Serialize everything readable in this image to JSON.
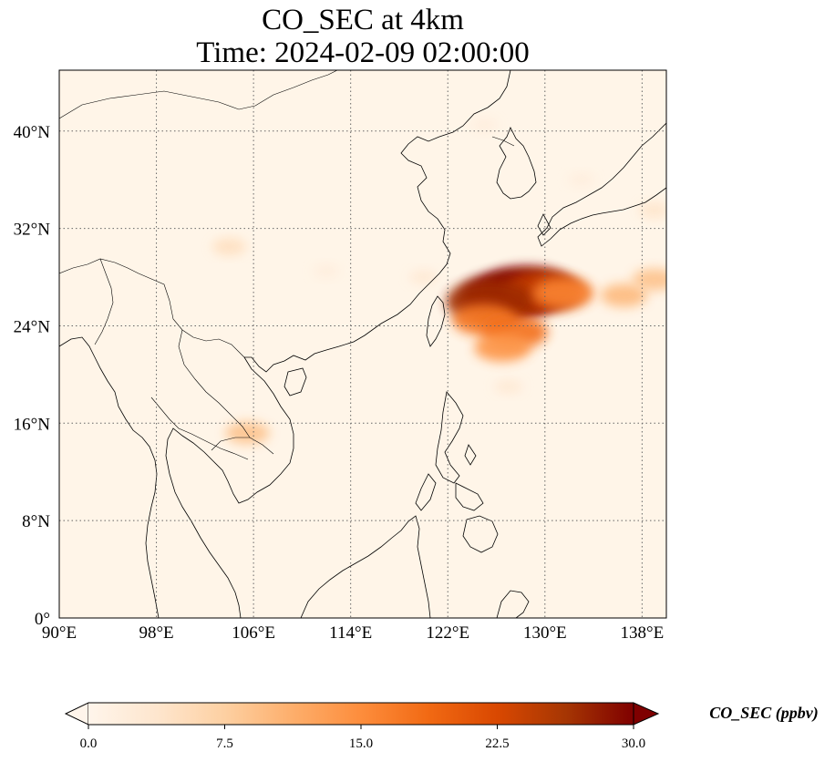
{
  "title": {
    "line1": "CO_SEC at 4km",
    "line2": "Time: 2024-02-09 02:00:00"
  },
  "map": {
    "lon_range": [
      90,
      140
    ],
    "lat_range": [
      0,
      45
    ],
    "lon_ticks": [
      {
        "value": 90,
        "label": "90°E"
      },
      {
        "value": 98,
        "label": "98°E"
      },
      {
        "value": 106,
        "label": "106°E"
      },
      {
        "value": 114,
        "label": "114°E"
      },
      {
        "value": 122,
        "label": "122°E"
      },
      {
        "value": 130,
        "label": "130°E"
      },
      {
        "value": 138,
        "label": "138°E"
      }
    ],
    "lat_ticks": [
      {
        "value": 0,
        "label": "0°"
      },
      {
        "value": 8,
        "label": "8°N"
      },
      {
        "value": 16,
        "label": "16°N"
      },
      {
        "value": 24,
        "label": "24°N"
      },
      {
        "value": 32,
        "label": "32°N"
      },
      {
        "value": 40,
        "label": "40°N"
      }
    ],
    "gridlines": "dotted",
    "background_color": "#fff5e8",
    "coast_color": "#000000",
    "plumes": [
      {
        "lon": 127,
        "lat": 26.5,
        "value": 30
      },
      {
        "lon": 128.5,
        "lat": 27,
        "value": 29
      },
      {
        "lon": 130,
        "lat": 26.8,
        "value": 24
      },
      {
        "lon": 125.5,
        "lat": 26,
        "value": 27
      },
      {
        "lon": 131.5,
        "lat": 26.7,
        "value": 16
      },
      {
        "lon": 125,
        "lat": 24.5,
        "value": 17
      },
      {
        "lon": 127.5,
        "lat": 23.5,
        "value": 18
      },
      {
        "lon": 126.5,
        "lat": 22.2,
        "value": 14
      },
      {
        "lon": 136.5,
        "lat": 26.5,
        "value": 10
      },
      {
        "lon": 139,
        "lat": 27.8,
        "value": 9
      },
      {
        "lon": 139,
        "lat": 33.5,
        "value": 4
      },
      {
        "lon": 104,
        "lat": 30.5,
        "value": 5
      },
      {
        "lon": 105.5,
        "lat": 15.2,
        "value": 9
      },
      {
        "lon": 120,
        "lat": 28,
        "value": 3
      },
      {
        "lon": 112,
        "lat": 28.5,
        "value": 2
      },
      {
        "lon": 125,
        "lat": 40.5,
        "value": 2
      },
      {
        "lon": 133,
        "lat": 36,
        "value": 2
      },
      {
        "lon": 127,
        "lat": 19,
        "value": 3
      }
    ]
  },
  "colorbar": {
    "label": "CO_SEC (ppbv)",
    "min": 0,
    "max": 30,
    "extend": "both",
    "ticks": [
      {
        "value": 0,
        "label": "0.0"
      },
      {
        "value": 7.5,
        "label": "7.5"
      },
      {
        "value": 15,
        "label": "15.0"
      },
      {
        "value": 22.5,
        "label": "22.5"
      },
      {
        "value": 30,
        "label": "30.0"
      }
    ],
    "colors": [
      "#fff5eb",
      "#fee6ce",
      "#fdd0a2",
      "#fdae6b",
      "#fd8d3c",
      "#f16913",
      "#d94801",
      "#a63603",
      "#7f0000"
    ]
  }
}
